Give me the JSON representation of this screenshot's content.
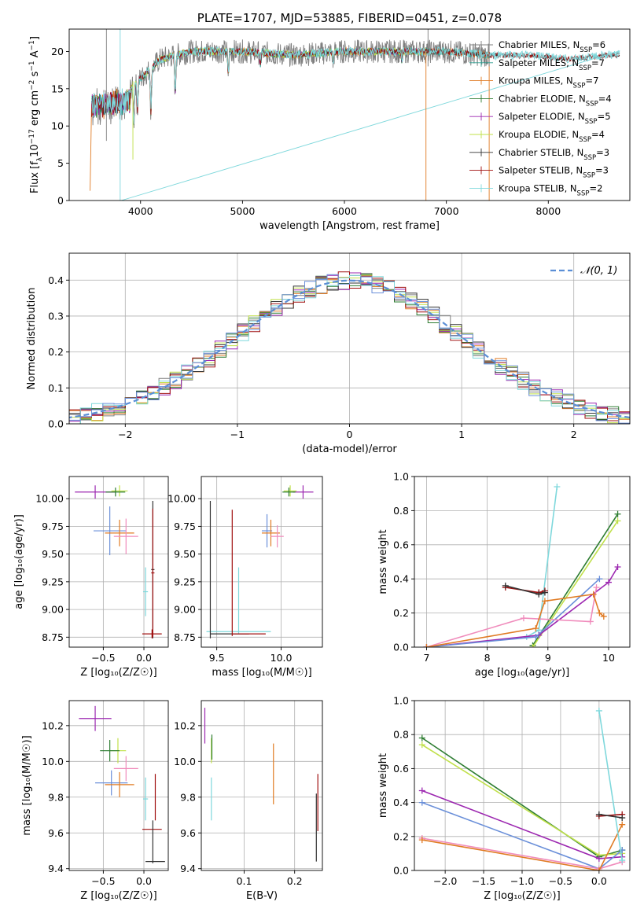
{
  "colors": {
    "chabrier_miles": "#7f7f7f",
    "salpeter_miles": "#2a9d8f",
    "kroupa_miles": "#e07b24",
    "chabrier_elodie": "#2e7d32",
    "salpeter_elodie": "#9c27b0",
    "kroupa_elodie": "#c0e04a",
    "chabrier_stelib": "#333333",
    "salpeter_stelib": "#a01010",
    "kroupa_stelib": "#7fd8dc",
    "normal": "#5b8fd6",
    "blue": "#6a8fd9",
    "pink": "#f08cbc"
  },
  "chart_data": [
    {
      "id": "spectrum",
      "type": "line",
      "title": "PLATE=1707, MJD=53885, FIBERID=0451, z=0.078",
      "xlabel": "wavelength [Angstrom, rest frame]",
      "ylabel_parts": [
        "Flux [f",
        "λ",
        "10",
        "−17",
        " erg cm",
        "−2",
        " s",
        "−1",
        " A",
        "−1",
        "]"
      ],
      "xlim": [
        3300,
        8800
      ],
      "ylim": [
        0,
        23
      ],
      "xticks": [
        4000,
        5000,
        6000,
        7000,
        8000
      ],
      "yticks": [
        0,
        5,
        10,
        15,
        20
      ],
      "grid": false,
      "legend_position": "right",
      "series": [
        {
          "name": "Chabrier MILES",
          "n": "6"
        },
        {
          "name": "Salpeter MILES",
          "n": "7"
        },
        {
          "name": "Kroupa MILES",
          "n": "7"
        },
        {
          "name": "Chabrier ELODIE",
          "n": "4"
        },
        {
          "name": "Salpeter ELODIE",
          "n": "5"
        },
        {
          "name": "Kroupa ELODIE",
          "n": "4"
        },
        {
          "name": "Chabrier STELIB",
          "n": "3"
        },
        {
          "name": "Salpeter STELIB",
          "n": "3"
        },
        {
          "name": "Kroupa STELIB",
          "n": "2"
        }
      ],
      "continuum": [
        [
          3500,
          14
        ],
        [
          3700,
          14.5
        ],
        [
          3900,
          15
        ],
        [
          4050,
          17
        ],
        [
          4200,
          19
        ],
        [
          4500,
          20
        ],
        [
          5000,
          20
        ],
        [
          5500,
          19.5
        ],
        [
          6000,
          20
        ],
        [
          6500,
          20
        ],
        [
          7000,
          20
        ],
        [
          7400,
          19.5
        ],
        [
          7800,
          19.5
        ],
        [
          8200,
          19
        ],
        [
          8600,
          19.5
        ]
      ]
    },
    {
      "id": "residuals",
      "type": "histogram",
      "xlabel": "(data-model)/error",
      "ylabel": "Normed distribution",
      "xlim": [
        -2.5,
        2.5
      ],
      "ylim": [
        0,
        0.475
      ],
      "xticks": [
        -2,
        -1,
        0,
        1,
        2
      ],
      "yticks": [
        0.0,
        0.1,
        0.2,
        0.3,
        0.4
      ],
      "grid": true,
      "legend": "𝒩(0, 1)",
      "legend_position": "top-right",
      "bin_width": 0.1
    },
    {
      "id": "age_vs_Z",
      "type": "errorbar",
      "xlabel": "Z [log₁₀(Z/Z☉)]",
      "ylabel": "age  [log₁₀(age/yr)]",
      "xlim": [
        -0.92,
        0.3
      ],
      "ylim": [
        8.66,
        10.2
      ],
      "xticks": [
        -0.5,
        0.0
      ],
      "yticks": [
        8.75,
        9.0,
        9.25,
        9.5,
        9.75,
        10.0
      ],
      "grid": true,
      "points": [
        {
          "s": "salpeter_elodie",
          "x": -0.6,
          "y": 10.06,
          "xe": 0.25,
          "ye": 0.06
        },
        {
          "s": "kroupa_elodie",
          "x": -0.3,
          "y": 10.07,
          "xe": 0.1,
          "ye": 0.05
        },
        {
          "s": "chabrier_elodie",
          "x": -0.35,
          "y": 10.06,
          "xe": 0.12,
          "ye": 0.04
        },
        {
          "s": "blue",
          "x": -0.42,
          "y": 9.71,
          "xe": 0.2,
          "ye": 0.22
        },
        {
          "s": "kroupa_miles",
          "x": -0.3,
          "y": 9.69,
          "xe": 0.18,
          "ye": 0.12
        },
        {
          "s": "pink",
          "x": -0.22,
          "y": 9.66,
          "xe": 0.15,
          "ye": 0.16
        },
        {
          "s": "kroupa_stelib",
          "x": 0.02,
          "y": 9.16,
          "xe": 0.03,
          "ye": 0.22
        },
        {
          "s": "chabrier_stelib",
          "x": 0.11,
          "y": 9.36,
          "xe": 0.02,
          "ye": 0.62
        },
        {
          "s": "salpeter_stelib",
          "x": 0.1,
          "y": 8.78,
          "xe": 0.12,
          "ye": 0.04
        },
        {
          "s": "salpeter_stelib",
          "x": 0.11,
          "y": 9.33,
          "xe": 0.02,
          "ye": 0.58
        }
      ]
    },
    {
      "id": "age_vs_mass",
      "type": "errorbar",
      "xlabel": "mass [log₁₀(M/M☉)]",
      "ylabel": "",
      "xlim": [
        9.38,
        10.32
      ],
      "ylim": [
        8.66,
        10.2
      ],
      "xticks": [
        9.5,
        10.0
      ],
      "yticks": [
        8.75,
        9.0,
        9.25,
        9.5,
        9.75,
        10.0
      ],
      "grid": true,
      "points": [
        {
          "s": "salpeter_elodie",
          "x": 10.17,
          "y": 10.06,
          "xe": 0.08,
          "ye": 0.06
        },
        {
          "s": "kroupa_elodie",
          "x": 10.07,
          "y": 10.07,
          "xe": 0.05,
          "ye": 0.05
        },
        {
          "s": "chabrier_elodie",
          "x": 10.06,
          "y": 10.06,
          "xe": 0.05,
          "ye": 0.04
        },
        {
          "s": "blue",
          "x": 9.89,
          "y": 9.71,
          "xe": 0.04,
          "ye": 0.15
        },
        {
          "s": "kroupa_miles",
          "x": 9.92,
          "y": 9.69,
          "xe": 0.07,
          "ye": 0.12
        },
        {
          "s": "pink",
          "x": 9.97,
          "y": 9.66,
          "xe": 0.05,
          "ye": 0.1
        },
        {
          "s": "kroupa_stelib",
          "x": 9.67,
          "y": 8.8,
          "xe": 0.25,
          "ye": 0.0
        },
        {
          "s": "kroupa_stelib",
          "x": 9.67,
          "y": 9.08,
          "xe": 0.0,
          "ye": 0.3
        },
        {
          "s": "chabrier_stelib",
          "x": 9.45,
          "y": 9.36,
          "xe": 0.0,
          "ye": 0.62
        },
        {
          "s": "chabrier_stelib",
          "x": 9.6,
          "y": 8.78,
          "xe": 0.15,
          "ye": 0.0
        },
        {
          "s": "salpeter_stelib",
          "x": 9.62,
          "y": 9.33,
          "xe": 0.0,
          "ye": 0.57
        },
        {
          "s": "salpeter_stelib",
          "x": 9.75,
          "y": 8.78,
          "xe": 0.13,
          "ye": 0.0
        }
      ]
    },
    {
      "id": "massweight_vs_age",
      "type": "line",
      "xlabel": "age  [log₁₀(age/yr)]",
      "ylabel": "mass weight",
      "xlim": [
        6.8,
        10.35
      ],
      "ylim": [
        0,
        1.0
      ],
      "xticks": [
        7,
        8,
        9,
        10
      ],
      "yticks": [
        0.0,
        0.2,
        0.4,
        0.6,
        0.8,
        1.0
      ],
      "grid": true,
      "series": [
        {
          "s": "kroupa_stelib",
          "x": [
            8.65,
            8.85,
            9.15
          ],
          "y": [
            0.06,
            0.1,
            0.94
          ]
        },
        {
          "s": "chabrier_elodie",
          "x": [
            8.75,
            10.15
          ],
          "y": [
            0.01,
            0.78
          ]
        },
        {
          "s": "kroupa_elodie",
          "x": [
            8.75,
            10.15
          ],
          "y": [
            0.0,
            0.74
          ]
        },
        {
          "s": "salpeter_elodie",
          "x": [
            7.0,
            8.85,
            10.0,
            10.15
          ],
          "y": [
            0.0,
            0.07,
            0.38,
            0.47
          ]
        },
        {
          "s": "blue",
          "x": [
            7.0,
            8.8,
            9.85
          ],
          "y": [
            0.0,
            0.06,
            0.4
          ]
        },
        {
          "s": "pink",
          "x": [
            7.0,
            8.6,
            9.7,
            9.8
          ],
          "y": [
            0.0,
            0.17,
            0.15,
            0.35
          ]
        },
        {
          "s": "kroupa_miles",
          "x": [
            7.0,
            8.8,
            8.95,
            9.75,
            9.85,
            9.92
          ],
          "y": [
            0.0,
            0.11,
            0.27,
            0.31,
            0.2,
            0.18
          ]
        },
        {
          "s": "salpeter_stelib",
          "x": [
            8.3,
            8.85,
            8.95
          ],
          "y": [
            0.35,
            0.32,
            0.33
          ]
        },
        {
          "s": "chabrier_stelib",
          "x": [
            8.3,
            8.85,
            8.95
          ],
          "y": [
            0.36,
            0.31,
            0.32
          ]
        }
      ]
    },
    {
      "id": "mass_vs_Z",
      "type": "errorbar",
      "xlabel": "Z [log₁₀(Z/Z☉)]",
      "ylabel": "mass [log₁₀(M/M☉)]",
      "xlim": [
        -0.92,
        0.3
      ],
      "ylim": [
        9.39,
        10.34
      ],
      "xticks": [
        -0.5,
        0.0
      ],
      "yticks": [
        9.4,
        9.6,
        9.8,
        10.0,
        10.2
      ],
      "grid": true,
      "points": [
        {
          "s": "salpeter_elodie",
          "x": -0.6,
          "y": 10.24,
          "xe": 0.2,
          "ye": 0.07
        },
        {
          "s": "kroupa_elodie",
          "x": -0.32,
          "y": 10.06,
          "xe": 0.1,
          "ye": 0.07
        },
        {
          "s": "chabrier_elodie",
          "x": -0.42,
          "y": 10.06,
          "xe": 0.12,
          "ye": 0.06
        },
        {
          "s": "pink",
          "x": -0.22,
          "y": 9.96,
          "xe": 0.15,
          "ye": 0.07
        },
        {
          "s": "blue",
          "x": -0.4,
          "y": 9.88,
          "xe": 0.2,
          "ye": 0.07
        },
        {
          "s": "kroupa_miles",
          "x": -0.3,
          "y": 9.87,
          "xe": 0.18,
          "ye": 0.07
        },
        {
          "s": "kroupa_stelib",
          "x": 0.02,
          "y": 9.79,
          "xe": 0.03,
          "ye": 0.12
        },
        {
          "s": "salpeter_stelib",
          "x": 0.1,
          "y": 9.62,
          "xe": 0.12,
          "ye": 0.0
        },
        {
          "s": "salpeter_stelib",
          "x": 0.14,
          "y": 9.8,
          "xe": 0.0,
          "ye": 0.13
        },
        {
          "s": "chabrier_stelib",
          "x": 0.14,
          "y": 9.44,
          "xe": 0.12,
          "ye": 0.0
        },
        {
          "s": "chabrier_stelib",
          "x": 0.11,
          "y": 9.55,
          "xe": 0.0,
          "ye": 0.12
        }
      ]
    },
    {
      "id": "mass_vs_ebv",
      "type": "errorbar",
      "xlabel": "E(B-V)",
      "ylabel": "",
      "xlim": [
        0.015,
        0.255
      ],
      "ylim": [
        9.39,
        10.34
      ],
      "xticks": [
        0.1,
        0.2
      ],
      "yticks": [
        9.4,
        9.6,
        9.8,
        10.0,
        10.2
      ],
      "grid": true,
      "points": [
        {
          "s": "salpeter_elodie",
          "x": 0.022,
          "y": 10.2,
          "xe": 0.0,
          "ye": 0.1
        },
        {
          "s": "kroupa_elodie",
          "x": 0.035,
          "y": 10.06,
          "xe": 0.0,
          "ye": 0.07
        },
        {
          "s": "chabrier_elodie",
          "x": 0.036,
          "y": 10.08,
          "xe": 0.0,
          "ye": 0.07
        },
        {
          "s": "kroupa_stelib",
          "x": 0.035,
          "y": 9.79,
          "xe": 0.0,
          "ye": 0.12
        },
        {
          "s": "kroupa_miles",
          "x": 0.158,
          "y": 9.93,
          "xe": 0.0,
          "ye": 0.17
        },
        {
          "s": "chabrier_stelib",
          "x": 0.243,
          "y": 9.63,
          "xe": 0.0,
          "ye": 0.19
        },
        {
          "s": "salpeter_stelib",
          "x": 0.246,
          "y": 9.77,
          "xe": 0.0,
          "ye": 0.16
        }
      ]
    },
    {
      "id": "massweight_vs_Z",
      "type": "line",
      "xlabel": "Z [log₁₀(Z/Z☉)]",
      "ylabel": "mass weight",
      "xlim": [
        -2.4,
        0.4
      ],
      "ylim": [
        0,
        1.0
      ],
      "xticks": [
        -2.0,
        -1.5,
        -1.0,
        -0.5,
        0.0
      ],
      "yticks": [
        0.0,
        0.2,
        0.4,
        0.6,
        0.8,
        1.0
      ],
      "grid": true,
      "series": [
        {
          "s": "chabrier_elodie",
          "x": [
            -2.3,
            0.0,
            0.3
          ],
          "y": [
            0.78,
            0.08,
            0.12
          ]
        },
        {
          "s": "kroupa_elodie",
          "x": [
            -2.3,
            0.0,
            0.3
          ],
          "y": [
            0.74,
            0.09,
            0.1
          ]
        },
        {
          "s": "salpeter_elodie",
          "x": [
            -2.3,
            0.0,
            0.3
          ],
          "y": [
            0.47,
            0.07,
            0.08
          ]
        },
        {
          "s": "blue",
          "x": [
            -2.3,
            0.0,
            0.3
          ],
          "y": [
            0.4,
            0.01,
            0.12
          ]
        },
        {
          "s": "pink",
          "x": [
            -2.3,
            0.0,
            0.3
          ],
          "y": [
            0.19,
            0.01,
            0.05
          ]
        },
        {
          "s": "kroupa_miles",
          "x": [
            -2.3,
            0.0,
            0.3
          ],
          "y": [
            0.18,
            0.0,
            0.27
          ]
        },
        {
          "s": "kroupa_stelib",
          "x": [
            0.0,
            0.3
          ],
          "y": [
            0.94,
            0.06
          ]
        },
        {
          "s": "salpeter_stelib",
          "x": [
            0.0,
            0.3
          ],
          "y": [
            0.32,
            0.33
          ]
        },
        {
          "s": "chabrier_stelib",
          "x": [
            0.0,
            0.3
          ],
          "y": [
            0.33,
            0.31
          ]
        }
      ]
    }
  ]
}
